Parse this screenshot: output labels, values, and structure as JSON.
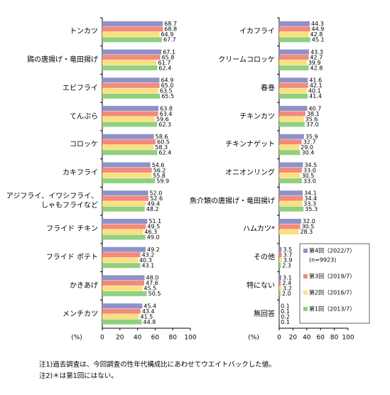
{
  "chart_data": [
    {
      "type": "bar",
      "orientation": "horizontal",
      "xlabel": "(%)",
      "categories": [
        "トンカツ",
        "鶏の唐揚げ・竜田揚げ",
        "エビフライ",
        "てんぷら",
        "コロッケ",
        "カキフライ",
        "アジフライ、イワシフライ、しゃもフライなど",
        "フライド チキン",
        "フライド ポテト",
        "かきあげ",
        "メンチカツ"
      ],
      "series": [
        {
          "color": "#8f92c9",
          "values": [
            68.7,
            67.1,
            64.9,
            63.8,
            58.6,
            54.6,
            52.0,
            51.1,
            49.2,
            48.0,
            45.4
          ],
          "value_labels": [
            "68.7",
            "67.1",
            "64.9",
            "63.8",
            "58.6",
            "54.6",
            "52.0",
            "51.1",
            "49.2",
            "48.0",
            "45.4"
          ]
        },
        {
          "color": "#f48a7c",
          "values": [
            68.8,
            65.8,
            65.0,
            63.4,
            60.5,
            56.2,
            52.6,
            49.5,
            43.2,
            47.6,
            43.4
          ],
          "value_labels": [
            "68.8",
            "65.8",
            "65.0",
            "63.4",
            "60.5",
            "56.2",
            "52.6",
            "49.5",
            "43.2",
            "47.6",
            "43.4"
          ]
        },
        {
          "color": "#fbe07c",
          "values": [
            64.9,
            61.7,
            63.5,
            59.6,
            58.3,
            55.8,
            49.4,
            46.3,
            40.3,
            45.5,
            41.5
          ],
          "value_labels": [
            "64.9",
            "61.7",
            "63.5",
            "59.6",
            "58.3",
            "55.8",
            "49.4",
            "46.3",
            "40.3",
            "45.5",
            "41.5"
          ]
        },
        {
          "color": "#90d080",
          "values": [
            67.7,
            62.4,
            65.5,
            62.3,
            62.4,
            59.9,
            48.2,
            49.0,
            43.1,
            50.5,
            44.8
          ],
          "value_labels": [
            "67.7",
            "62.4",
            "65.5",
            "62.3",
            "62.4",
            "59.9",
            "48.2",
            "49.0",
            "43.1",
            "50.5",
            "44.8"
          ]
        }
      ],
      "xlim": [
        0,
        100
      ],
      "xticks": [
        0,
        20,
        40,
        60,
        80,
        100
      ]
    },
    {
      "type": "bar",
      "orientation": "horizontal",
      "xlabel": "(%)",
      "categories": [
        "イカフライ",
        "クリームコロッケ",
        "春巻",
        "チキンカツ",
        "チキンナゲット",
        "オニオンリング",
        "魚介類の唐揚げ・竜田揚げ",
        "ハムカツ*",
        "その他",
        "特にない",
        "無回答"
      ],
      "series": [
        {
          "name": "第4回（2022/7）",
          "color": "#8f92c9",
          "values": [
            44.3,
            43.3,
            41.6,
            40.7,
            35.9,
            34.5,
            34.1,
            32.0,
            3.5,
            3.1,
            0.1
          ],
          "value_labels": [
            "44.3",
            "43.3",
            "41.6",
            "40.7",
            "35.9",
            "34.5",
            "34.1",
            "32.0",
            "3.5",
            "3.1",
            "0.1"
          ]
        },
        {
          "name": "第3回（2019/7）",
          "color": "#f48a7c",
          "values": [
            44.9,
            42.7,
            42.1,
            38.1,
            32.7,
            33.0,
            34.4,
            30.5,
            3.7,
            2.4,
            0.1
          ],
          "value_labels": [
            "44.9",
            "42.7",
            "42.1",
            "38.1",
            "32.7",
            "33.0",
            "34.4",
            "30.5",
            "3.7",
            "2.4",
            "0.1"
          ]
        },
        {
          "name": "第2回（2016/7）",
          "color": "#fbe07c",
          "values": [
            42.8,
            39.9,
            40.1,
            35.6,
            29.0,
            30.5,
            33.3,
            28.3,
            3.9,
            3.2,
            0.2
          ],
          "value_labels": [
            "42.8",
            "39.9",
            "40.1",
            "35.6",
            "29.0",
            "30.5",
            "33.3",
            "28.3",
            "3.9",
            "3.2",
            "0.2"
          ]
        },
        {
          "name": "第1回（2013/7）",
          "color": "#90d080",
          "values": [
            45.1,
            42.8,
            41.4,
            37.0,
            30.4,
            33.0,
            35.3,
            null,
            2.3,
            2.0,
            0.1
          ],
          "value_labels": [
            "45.1",
            "42.8",
            "41.4",
            "37.0",
            "30.4",
            "33.0",
            "35.3",
            null,
            "2.3",
            "2.0",
            "0.1"
          ]
        }
      ],
      "legend": "lower right",
      "legend_note": "(n=9923)",
      "xlim": [
        0,
        100
      ],
      "xticks": [
        0,
        20,
        40,
        60,
        80,
        100
      ]
    }
  ],
  "notes": [
    "注1)過去調査は、今回調査の性年代構成比にあわせてウエイトバックした値。",
    "注2)＊は第1回にはない。"
  ]
}
